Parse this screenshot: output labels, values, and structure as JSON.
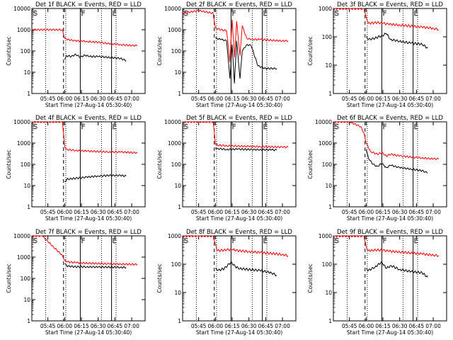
{
  "chart_data": [
    {
      "type": "line",
      "title": "Det 1f BLACK = Events, RED = LLD",
      "xlabel": "Start Time (27-Aug-14 05:30:40)",
      "ylabel": "Counts/sec",
      "ylim": [
        1,
        10000
      ],
      "yscale": "log",
      "xlim": [
        "05:30:40",
        "07:12"
      ],
      "xticks": [
        "05:45",
        "06:00",
        "06:15",
        "06:30",
        "06:45",
        "07:00"
      ],
      "yticks": [
        "1",
        "10",
        "100",
        "1000",
        "10000"
      ],
      "markers": {
        "S": "05:31",
        "F": "06:14",
        "E": "06:42"
      },
      "dotted_at": [
        "05:43",
        "06:01",
        "06:33",
        "06:46"
      ],
      "dashed_at": "05:59",
      "series": [
        {
          "name": "RED = LLD",
          "color": "#ff0000",
          "x": [
            "05:31",
            "05:45",
            "05:58",
            "06:00",
            "06:02",
            "06:10",
            "06:15",
            "06:20",
            "06:25",
            "06:30",
            "06:40",
            "06:50",
            "07:00",
            "07:05"
          ],
          "values": [
            1000,
            1000,
            1000,
            400,
            350,
            300,
            300,
            280,
            270,
            260,
            220,
            200,
            180,
            180
          ]
        },
        {
          "name": "BLACK = Events",
          "color": "#000000",
          "x": [
            "06:00",
            "06:02",
            "06:06",
            "06:10",
            "06:14",
            "06:18",
            "06:22",
            "06:30",
            "06:40",
            "06:50",
            "06:55"
          ],
          "values": [
            40,
            60,
            55,
            70,
            50,
            65,
            55,
            55,
            50,
            45,
            35
          ]
        }
      ]
    },
    {
      "type": "line",
      "title": "Det 2f BLACK = Events, RED = LLD",
      "xlabel": "Start Time (27-Aug-14 05:30:40)",
      "ylabel": "Counts/sec",
      "ylim": [
        1,
        10000
      ],
      "yscale": "log",
      "xlim": [
        "05:30:40",
        "07:12"
      ],
      "xticks": [
        "05:45",
        "06:00",
        "06:15",
        "06:30",
        "06:45",
        "07:00"
      ],
      "yticks": [
        "1",
        "10",
        "100",
        "1000",
        "10000"
      ],
      "markers": {
        "S": "05:31",
        "F": "06:14",
        "E": "06:42"
      },
      "dotted_at": [
        "05:43",
        "06:01",
        "06:33",
        "06:46"
      ],
      "dashed_at": "05:59",
      "series": [
        {
          "name": "RED = LLD",
          "color": "#ff0000",
          "x": [
            "05:31",
            "05:45",
            "05:58",
            "06:00",
            "06:05",
            "06:10",
            "06:13",
            "06:15",
            "06:17",
            "06:19",
            "06:22",
            "06:24",
            "06:28",
            "06:32",
            "06:40",
            "06:50",
            "07:00",
            "07:05"
          ],
          "values": [
            6000,
            8000,
            6000,
            1200,
            1000,
            900,
            30,
            3000,
            50,
            2500,
            60,
            1500,
            400,
            350,
            350,
            320,
            300,
            300
          ]
        },
        {
          "name": "BLACK = Events",
          "color": "#000000",
          "x": [
            "06:00",
            "06:05",
            "06:10",
            "06:13",
            "06:15",
            "06:17",
            "06:19",
            "06:22",
            "06:24",
            "06:28",
            "06:32",
            "06:38",
            "06:45",
            "06:55"
          ],
          "values": [
            400,
            350,
            300,
            5,
            200,
            3,
            300,
            5,
            100,
            200,
            180,
            20,
            15,
            15
          ]
        }
      ]
    },
    {
      "type": "line",
      "title": "Det 3f BLACK = Events, RED = LLD",
      "xlabel": "Start Time (27-Aug-14 05:30:40)",
      "ylabel": "Counts/sec",
      "ylim": [
        1,
        1000
      ],
      "yscale": "log",
      "xlim": [
        "05:30:40",
        "07:12"
      ],
      "xticks": [
        "05:45",
        "06:00",
        "06:15",
        "06:30",
        "06:45",
        "07:00"
      ],
      "yticks": [
        "1",
        "10",
        "100",
        "1000"
      ],
      "markers": {
        "S": "05:31",
        "F": "06:14",
        "E": "06:42"
      },
      "dotted_at": [
        "05:43",
        "06:01",
        "06:33",
        "06:46"
      ],
      "dashed_at": "05:59",
      "series": [
        {
          "name": "RED = LLD",
          "color": "#ff0000",
          "x": [
            "05:31",
            "05:45",
            "05:58",
            "06:00",
            "06:02",
            "06:10",
            "06:15",
            "06:20",
            "06:30",
            "06:40",
            "06:50",
            "07:00",
            "07:05"
          ],
          "values": [
            1000,
            1000,
            1000,
            500,
            300,
            320,
            300,
            280,
            260,
            240,
            220,
            200,
            180
          ]
        },
        {
          "name": "BLACK = Events",
          "color": "#000000",
          "x": [
            "06:00",
            "06:02",
            "06:08",
            "06:14",
            "06:18",
            "06:22",
            "06:30",
            "06:40",
            "06:50",
            "06:55"
          ],
          "values": [
            100,
            80,
            90,
            110,
            130,
            80,
            70,
            60,
            55,
            40
          ]
        }
      ]
    },
    {
      "type": "line",
      "title": "Det 4f BLACK = Events, RED = LLD",
      "xlabel": "Start Time (27-Aug-14 05:30:40)",
      "ylabel": "Counts/sec",
      "ylim": [
        1,
        10000
      ],
      "yscale": "log",
      "xlim": [
        "05:30:40",
        "07:12"
      ],
      "xticks": [
        "05:45",
        "06:00",
        "06:15",
        "06:30",
        "06:45",
        "07:00"
      ],
      "yticks": [
        "1",
        "10",
        "100",
        "1000",
        "10000"
      ],
      "markers": {
        "S": "05:31",
        "F": "06:14",
        "E": "06:42"
      },
      "dotted_at": [
        "05:43",
        "06:01",
        "06:33",
        "06:46"
      ],
      "dashed_at": "05:59",
      "series": [
        {
          "name": "RED = LLD",
          "color": "#ff0000",
          "x": [
            "05:31",
            "05:45",
            "05:58",
            "06:00",
            "06:02",
            "06:10",
            "06:20",
            "06:30",
            "06:40",
            "06:50",
            "07:00",
            "07:05"
          ],
          "values": [
            10000,
            10000,
            10000,
            700,
            500,
            450,
            420,
            400,
            380,
            380,
            360,
            350
          ]
        },
        {
          "name": "BLACK = Events",
          "color": "#000000",
          "x": [
            "06:00",
            "06:02",
            "06:10",
            "06:20",
            "06:30",
            "06:40",
            "06:50",
            "06:55"
          ],
          "values": [
            15,
            20,
            22,
            25,
            28,
            30,
            30,
            28
          ]
        }
      ]
    },
    {
      "type": "line",
      "title": "Det 5f BLACK = Events, RED = LLD",
      "xlabel": "Start Time (27-Aug-14 05:30:40)",
      "ylabel": "Counts/sec",
      "ylim": [
        1,
        10000
      ],
      "yscale": "log",
      "xlim": [
        "05:30:40",
        "07:12"
      ],
      "xticks": [
        "05:45",
        "06:00",
        "06:15",
        "06:30",
        "06:45",
        "07:00"
      ],
      "yticks": [
        "1",
        "10",
        "100",
        "1000",
        "10000"
      ],
      "markers": {
        "S": "05:31",
        "F": "06:14",
        "E": "06:42"
      },
      "dotted_at": [
        "05:43",
        "06:01",
        "06:33",
        "06:46"
      ],
      "dashed_at": "05:59",
      "series": [
        {
          "name": "RED = LLD",
          "color": "#ff0000",
          "x": [
            "05:31",
            "05:45",
            "05:58",
            "06:00",
            "06:02",
            "06:10",
            "06:20",
            "06:30",
            "06:40",
            "06:50",
            "07:00",
            "07:05"
          ],
          "values": [
            10000,
            10000,
            10000,
            900,
            800,
            750,
            720,
            700,
            680,
            660,
            650,
            650
          ]
        },
        {
          "name": "BLACK = Events",
          "color": "#000000",
          "x": [
            "06:00",
            "06:02",
            "06:10",
            "06:20",
            "06:30",
            "06:40",
            "06:50",
            "06:55"
          ],
          "values": [
            600,
            550,
            500,
            520,
            500,
            490,
            480,
            470
          ]
        }
      ]
    },
    {
      "type": "line",
      "title": "Det 6f BLACK = Events, RED = LLD",
      "xlabel": "Start Time (27-Aug-14 05:30:40)",
      "ylabel": "Counts/sec",
      "ylim": [
        1,
        10000
      ],
      "yscale": "log",
      "xlim": [
        "05:30:40",
        "07:12"
      ],
      "xticks": [
        "05:45",
        "06:00",
        "06:15",
        "06:30",
        "06:45",
        "07:00"
      ],
      "yticks": [
        "1",
        "10",
        "100",
        "1000",
        "10000"
      ],
      "markers": {
        "S": "05:31",
        "F": "06:14",
        "E": "06:42"
      },
      "dotted_at": [
        "05:43",
        "06:01",
        "06:33",
        "06:46"
      ],
      "dashed_at": "05:59",
      "series": [
        {
          "name": "RED = LLD",
          "color": "#ff0000",
          "x": [
            "05:31",
            "05:45",
            "05:55",
            "05:58",
            "06:00",
            "06:04",
            "06:10",
            "06:14",
            "06:18",
            "06:22",
            "06:30",
            "06:40",
            "06:50",
            "07:00",
            "07:05"
          ],
          "values": [
            10000,
            10000,
            6000,
            3000,
            1000,
            400,
            300,
            350,
            250,
            300,
            250,
            220,
            200,
            180,
            180
          ]
        },
        {
          "name": "BLACK = Events",
          "color": "#000000",
          "x": [
            "06:00",
            "06:02",
            "06:06",
            "06:10",
            "06:14",
            "06:18",
            "06:22",
            "06:30",
            "06:40",
            "06:50",
            "06:55"
          ],
          "values": [
            500,
            200,
            100,
            80,
            110,
            70,
            90,
            70,
            60,
            50,
            40
          ]
        }
      ]
    },
    {
      "type": "line",
      "title": "Det 7f BLACK = Events, RED = LLD",
      "xlabel": "Start Time (27-Aug-14 05:30:40)",
      "ylabel": "Counts/sec",
      "ylim": [
        1,
        10000
      ],
      "yscale": "log",
      "xlim": [
        "05:30:40",
        "07:12"
      ],
      "xticks": [
        "05:45",
        "06:00",
        "06:15",
        "06:30",
        "06:45",
        "07:00"
      ],
      "yticks": [
        "1",
        "10",
        "100",
        "1000",
        "10000"
      ],
      "markers": {
        "S": "05:31",
        "F": "06:14",
        "E": "06:42"
      },
      "dotted_at": [
        "05:43",
        "06:01",
        "06:33",
        "06:46"
      ],
      "dashed_at": "05:59",
      "series": [
        {
          "name": "RED = LLD",
          "color": "#ff0000",
          "x": [
            "05:31",
            "05:40",
            "05:50",
            "05:58",
            "06:00",
            "06:02",
            "06:10",
            "06:20",
            "06:30",
            "06:40",
            "06:50",
            "07:00",
            "07:05"
          ],
          "values": [
            10000,
            10000,
            3000,
            1200,
            700,
            600,
            550,
            520,
            500,
            480,
            470,
            460,
            450
          ]
        },
        {
          "name": "BLACK = Events",
          "color": "#000000",
          "x": [
            "06:00",
            "06:02",
            "06:10",
            "06:20",
            "06:30",
            "06:40",
            "06:50",
            "06:55"
          ],
          "values": [
            500,
            380,
            350,
            350,
            340,
            340,
            330,
            330
          ]
        }
      ]
    },
    {
      "type": "line",
      "title": "Det 8f BLACK = Events, RED = LLD",
      "xlabel": "Start Time (27-Aug-14 05:30:40)",
      "ylabel": "Counts/sec",
      "ylim": [
        1,
        1000
      ],
      "yscale": "log",
      "xlim": [
        "05:30:40",
        "07:12"
      ],
      "xticks": [
        "05:45",
        "06:00",
        "06:15",
        "06:30",
        "06:45",
        "07:00"
      ],
      "yticks": [
        "1",
        "10",
        "100",
        "1000"
      ],
      "markers": {
        "S": "05:31",
        "F": "06:14",
        "E": "06:42"
      },
      "dotted_at": [
        "05:43",
        "06:01",
        "06:33",
        "06:46"
      ],
      "dashed_at": "05:59",
      "series": [
        {
          "name": "RED = LLD",
          "color": "#ff0000",
          "x": [
            "05:31",
            "05:45",
            "05:58",
            "06:00",
            "06:02",
            "06:10",
            "06:15",
            "06:20",
            "06:30",
            "06:40",
            "06:50",
            "07:00",
            "07:05"
          ],
          "values": [
            1000,
            1000,
            1000,
            500,
            300,
            320,
            330,
            300,
            280,
            260,
            240,
            220,
            200
          ]
        },
        {
          "name": "BLACK = Events",
          "color": "#000000",
          "x": [
            "06:00",
            "06:02",
            "06:08",
            "06:14",
            "06:18",
            "06:22",
            "06:30",
            "06:40",
            "06:50",
            "06:55"
          ],
          "values": [
            70,
            60,
            70,
            120,
            80,
            70,
            65,
            60,
            50,
            40
          ]
        }
      ]
    },
    {
      "type": "line",
      "title": "Det 9f BLACK = Events, RED = LLD",
      "xlabel": "Start Time (27-Aug-14 05:30:40)",
      "ylabel": "Counts/sec",
      "ylim": [
        1,
        1000
      ],
      "yscale": "log",
      "xlim": [
        "05:30:40",
        "07:12"
      ],
      "xticks": [
        "05:45",
        "06:00",
        "06:15",
        "06:30",
        "06:45",
        "07:00"
      ],
      "yticks": [
        "1",
        "10",
        "100",
        "1000"
      ],
      "markers": {
        "S": "05:31",
        "F": "06:14",
        "E": "06:42"
      },
      "dotted_at": [
        "05:43",
        "06:01",
        "06:33",
        "06:46"
      ],
      "dashed_at": "05:59",
      "series": [
        {
          "name": "RED = LLD",
          "color": "#ff0000",
          "x": [
            "05:31",
            "05:45",
            "05:58",
            "06:00",
            "06:02",
            "06:10",
            "06:15",
            "06:20",
            "06:30",
            "06:40",
            "06:50",
            "07:00",
            "07:05"
          ],
          "values": [
            1000,
            1000,
            1000,
            400,
            300,
            320,
            310,
            290,
            270,
            250,
            230,
            210,
            200
          ]
        },
        {
          "name": "BLACK = Events",
          "color": "#000000",
          "x": [
            "06:00",
            "06:02",
            "06:08",
            "06:14",
            "06:18",
            "06:22",
            "06:30",
            "06:40",
            "06:50",
            "06:55"
          ],
          "values": [
            70,
            60,
            80,
            120,
            70,
            90,
            65,
            55,
            50,
            35
          ]
        }
      ]
    }
  ]
}
